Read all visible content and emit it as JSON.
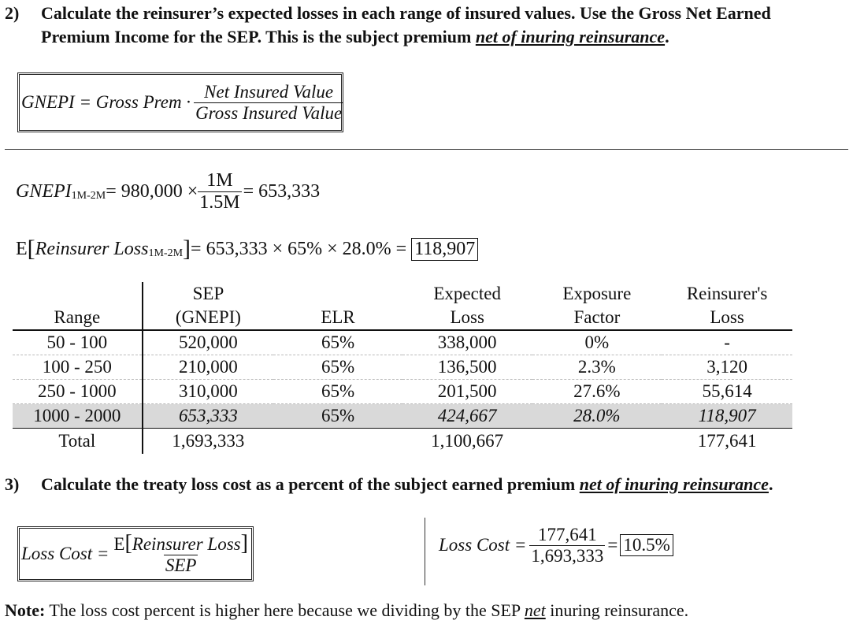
{
  "q2": {
    "number": "2)",
    "line1": "Calculate the reinsurer’s expected losses in each range of insured values. Use the Gross Net Earned",
    "line2": "Premium Income for the SEP. This is the subject premium ",
    "emph": "net of inuring reinsurance",
    "end": "."
  },
  "gnepi_formula": {
    "lhs": "GNEPI = Gross Prem ·",
    "numerator": "Net Insured Value",
    "denominator": "Gross Insured Value"
  },
  "calc": {
    "gnepi_label": "GNEPI",
    "range_sub": "1M-2M",
    "gnepi_mid": " = 980,000 ×",
    "num": "1M",
    "den": "1.5M",
    "gnepi_result": "= 653,333",
    "loss_prefix": "E",
    "loss_label": "Reinsurer Loss",
    "loss_mid": " = 653,333 × 65% × 28.0% =",
    "loss_result": "118,907"
  },
  "table": {
    "headers": [
      {
        "top": "",
        "bottom": "Range"
      },
      {
        "top": "SEP",
        "bottom": "(GNEPI)"
      },
      {
        "top": "",
        "bottom": "ELR"
      },
      {
        "top": "Expected",
        "bottom": "Loss"
      },
      {
        "top": "Exposure",
        "bottom": "Factor"
      },
      {
        "top": "Reinsurer's",
        "bottom": "Loss"
      }
    ],
    "rows": [
      [
        "50 - 100",
        "520,000",
        "65%",
        "338,000",
        "0%",
        "-"
      ],
      [
        "100 - 250",
        "210,000",
        "65%",
        "136,500",
        "2.3%",
        "3,120"
      ],
      [
        "250 - 1000",
        "310,000",
        "65%",
        "201,500",
        "27.6%",
        "55,614"
      ],
      [
        "1000 - 2000",
        "653,333",
        "65%",
        "424,667",
        "28.0%",
        "118,907"
      ]
    ],
    "total": [
      "Total",
      "1,693,333",
      "",
      "1,100,667",
      "",
      "177,641"
    ]
  },
  "q3": {
    "number": "3)",
    "text": "Calculate the treaty loss cost as a percent of the subject earned premium ",
    "emph": "net of inuring reinsurance",
    "end": "."
  },
  "loss_cost_formula": {
    "lhs": "Loss Cost =",
    "num_prefix": "E",
    "numerator": "Reinsurer Loss",
    "denominator": "SEP"
  },
  "loss_cost_calc": {
    "lhs": "Loss Cost =",
    "numerator": "177,641",
    "denominator": "1,693,333",
    "eq": "=",
    "result": "10.5%"
  },
  "note": {
    "label": "Note:",
    "text1": " The loss cost percent is higher here because we dividing by the SEP ",
    "emph": "net",
    "text2": " inuring reinsurance."
  }
}
